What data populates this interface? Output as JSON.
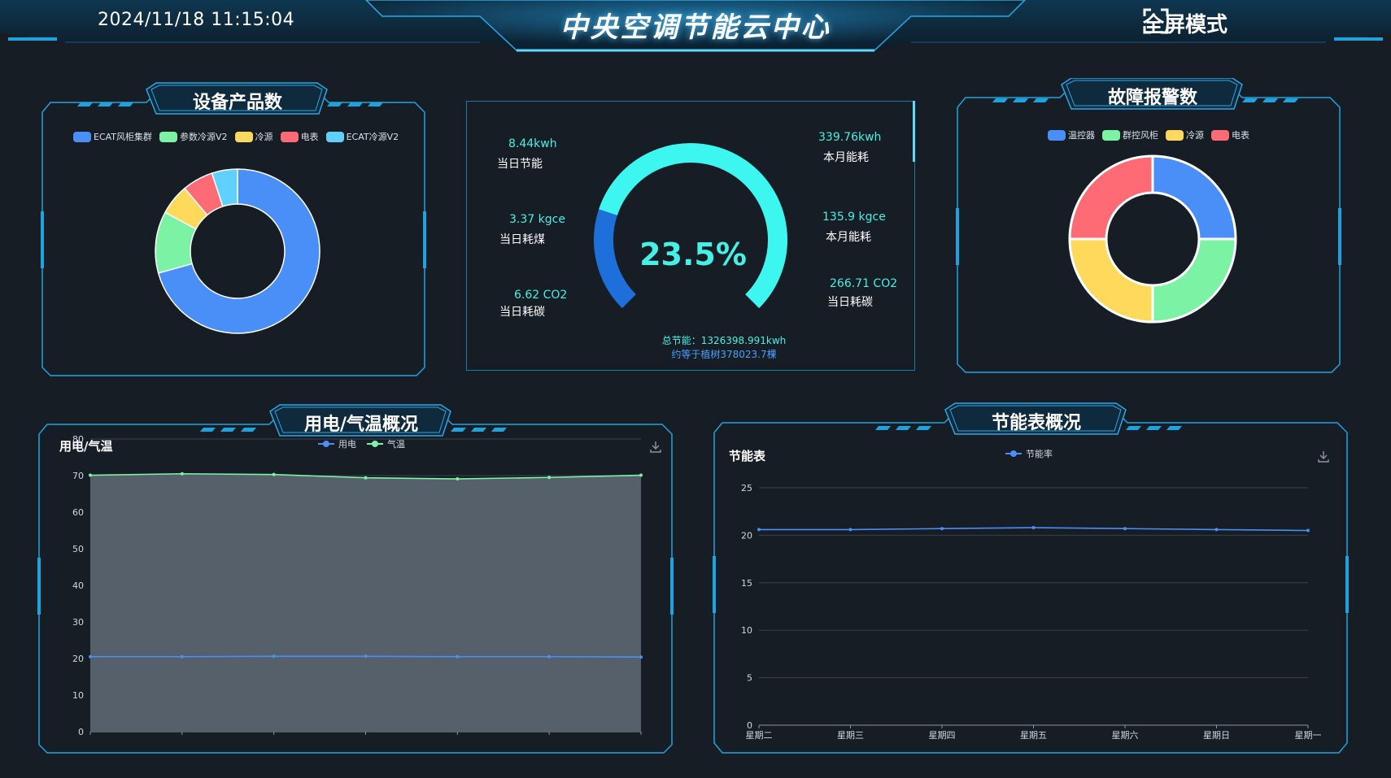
{
  "header": {
    "datetime": "2024/11/18 11:15:04",
    "title": "中央空调节能云中心",
    "fullscreen_label": "全屏模式"
  },
  "device_panel": {
    "title": "设备产品数",
    "legend": [
      {
        "name": "ECAT风柜集群",
        "color": "#4a8ff7"
      },
      {
        "name": "参数冷源V2",
        "color": "#7cf3a4"
      },
      {
        "name": "冷源",
        "color": "#ffd95c"
      },
      {
        "name": "电表",
        "color": "#ff6b74"
      },
      {
        "name": "ECAT冷源V2",
        "color": "#5fd0ff"
      }
    ]
  },
  "fault_panel": {
    "title": "故障报警数",
    "legend": [
      {
        "name": "温控器",
        "color": "#4a8ff7"
      },
      {
        "name": "群控风柜",
        "color": "#7cf3a4"
      },
      {
        "name": "冷源",
        "color": "#ffd95c"
      },
      {
        "name": "电表",
        "color": "#ff6b74"
      }
    ]
  },
  "energy_panel": {
    "percent": "23.5%",
    "percent_value": 23.5,
    "stats_left": [
      {
        "value": "8.44kwh",
        "label": "当日节能"
      },
      {
        "value": "3.37 kgce",
        "label": "当日耗煤"
      },
      {
        "value": "6.62 CO2",
        "label": "当日耗碳"
      }
    ],
    "stats_right": [
      {
        "value": "339.76kwh",
        "label": "本月能耗"
      },
      {
        "value": "135.9 kgce",
        "label": "本月能耗"
      },
      {
        "value": "266.71 CO2",
        "label": "当日耗碳"
      }
    ],
    "total": "总节能：1326398.991kwh",
    "trees": "约等于植树378023.7棵"
  },
  "power_panel": {
    "title": "用电/气温概况",
    "chart_title": "用电/气温",
    "download_icon": "download-icon"
  },
  "saving_panel": {
    "title": "节能表概况",
    "chart_title": "节能表",
    "download_icon": "download-icon"
  },
  "chart_data": [
    {
      "type": "pie",
      "donut": true,
      "categories": [
        "ECAT风柜集群",
        "参数冷源V2",
        "冷源",
        "电表",
        "ECAT冷源V2"
      ],
      "values": [
        70,
        12,
        6,
        6,
        5
      ],
      "colors": [
        "#4a8ff7",
        "#7cf3a4",
        "#ffd95c",
        "#ff6b74",
        "#5fd0ff"
      ]
    },
    {
      "type": "pie",
      "donut": true,
      "categories": [
        "温控器",
        "群控风柜",
        "冷源",
        "电表"
      ],
      "values": [
        25,
        25,
        25,
        25
      ],
      "colors": [
        "#4a8ff7",
        "#7cf3a4",
        "#ffd95c",
        "#ff6b74"
      ]
    },
    {
      "type": "area",
      "series": [
        {
          "name": "用电",
          "values": [
            20.5,
            20.5,
            20.6,
            20.6,
            20.5,
            20.5,
            20.4
          ],
          "color": "#4a8ff7"
        },
        {
          "name": "气温",
          "values": [
            70.1,
            70.5,
            70.3,
            69.4,
            69.1,
            69.5,
            70.1
          ],
          "color": "#7cf3a4"
        }
      ],
      "ylim": [
        0,
        80
      ],
      "yticks": [
        0,
        10,
        20,
        30,
        40,
        50,
        60,
        70,
        80
      ],
      "grid": true,
      "legend": "top-center"
    },
    {
      "type": "line",
      "categories": [
        "星期二",
        "星期三",
        "星期四",
        "星期五",
        "星期六",
        "星期日",
        "星期一"
      ],
      "series": [
        {
          "name": "节能率",
          "values": [
            20.6,
            20.6,
            20.7,
            20.8,
            20.7,
            20.6,
            20.5
          ],
          "color": "#4a8ff7"
        }
      ],
      "ylim": [
        0,
        25
      ],
      "yticks": [
        0,
        5,
        10,
        15,
        20,
        25
      ],
      "grid": true,
      "legend": "top-center"
    }
  ]
}
